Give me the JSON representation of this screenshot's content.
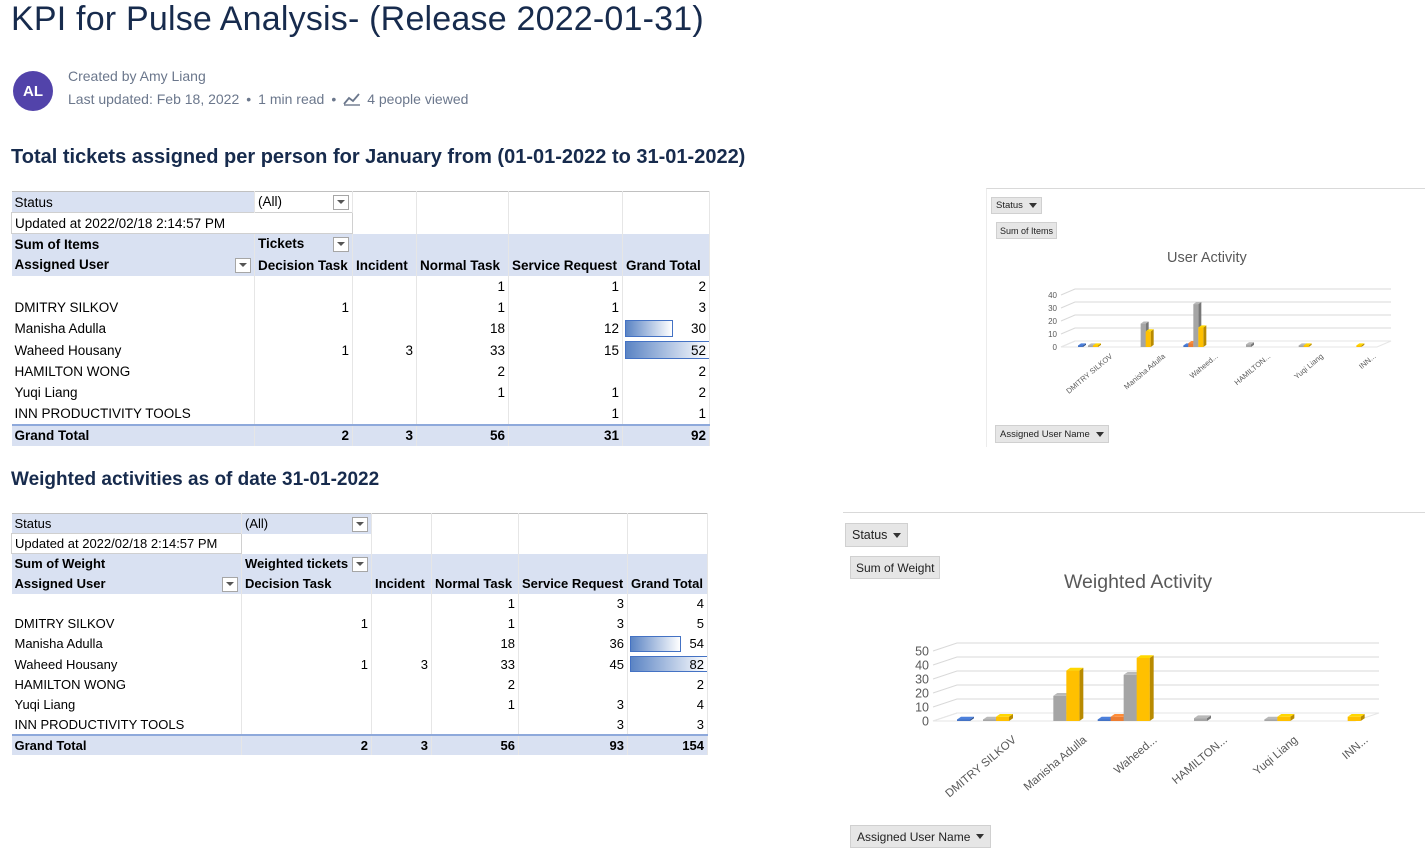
{
  "page": {
    "title": "KPI for Pulse Analysis- (Release 2022-01-31)",
    "avatar_initials": "AL",
    "created_by": "Created by Amy Liang",
    "last_updated": "Last updated: Feb 18, 2022",
    "read_time": "1 min read",
    "viewed": "4 people viewed",
    "avatar_color": "#5243aa"
  },
  "section1": {
    "heading": "Total tickets assigned per person for January from (01-01-2022 to 31-01-2022)",
    "filter_label": "Status",
    "filter_value": "(All)",
    "updated": "Updated at 2022/02/18 2:14:57 PM",
    "sum_label": "Sum of Items",
    "col_field_label": "Tickets",
    "row_field_label": "Assigned User",
    "columns": [
      "Decision Task",
      "Incident",
      "Normal Task",
      "Service Request",
      "Grand Total"
    ],
    "rows": [
      {
        "name": "",
        "values": [
          "",
          "",
          "1",
          "1",
          "2"
        ]
      },
      {
        "name": "DMITRY SILKOV",
        "values": [
          "1",
          "",
          "1",
          "1",
          "3"
        ]
      },
      {
        "name": "Manisha Adulla",
        "values": [
          "",
          "",
          "18",
          "12",
          "30"
        ]
      },
      {
        "name": "Waheed Housany",
        "values": [
          "1",
          "3",
          "33",
          "15",
          "52"
        ]
      },
      {
        "name": "HAMILTON WONG",
        "values": [
          "",
          "",
          "2",
          "",
          "2"
        ]
      },
      {
        "name": "Yuqi Liang",
        "values": [
          "",
          "",
          "1",
          "1",
          "2"
        ]
      },
      {
        "name": "INN PRODUCTIVITY TOOLS",
        "values": [
          "",
          "",
          "",
          "1",
          "1"
        ]
      }
    ],
    "total": {
      "name": "Grand Total",
      "values": [
        "2",
        "3",
        "56",
        "31",
        "92"
      ]
    }
  },
  "section2": {
    "heading": "Weighted activities as of date 31-01-2022",
    "filter_label": "Status",
    "filter_value": "(All)",
    "updated": "Updated at 2022/02/18 2:14:57 PM",
    "sum_label": "Sum of Weight",
    "col_field_label": "Weighted tickets",
    "row_field_label": "Assigned User",
    "columns": [
      "Decision Task",
      "Incident",
      "Normal Task",
      "Service Request",
      "Grand Total"
    ],
    "rows": [
      {
        "name": "",
        "values": [
          "",
          "",
          "1",
          "3",
          "4"
        ]
      },
      {
        "name": "DMITRY SILKOV",
        "values": [
          "1",
          "",
          "1",
          "3",
          "5"
        ]
      },
      {
        "name": "Manisha Adulla",
        "values": [
          "",
          "",
          "18",
          "36",
          "54"
        ]
      },
      {
        "name": "Waheed Housany",
        "values": [
          "1",
          "3",
          "33",
          "45",
          "82"
        ]
      },
      {
        "name": "HAMILTON WONG",
        "values": [
          "",
          "",
          "2",
          "",
          "2"
        ]
      },
      {
        "name": "Yuqi Liang",
        "values": [
          "",
          "",
          "1",
          "3",
          "4"
        ]
      },
      {
        "name": "INN PRODUCTIVITY TOOLS",
        "values": [
          "",
          "",
          "",
          "3",
          "3"
        ]
      }
    ],
    "total": {
      "name": "Grand Total",
      "values": [
        "2",
        "3",
        "56",
        "93",
        "154"
      ]
    }
  },
  "chart_data": [
    {
      "type": "bar",
      "title": "User Activity",
      "filter_button": "Status",
      "values_button": "Sum of Items",
      "axis_button": "Assigned User Name",
      "categories": [
        "DMITRY SILKOV",
        "Manisha Adulla",
        "Waheed...",
        "HAMILTON...",
        "Yuqi Liang",
        "INN..."
      ],
      "series": [
        {
          "color": "#4472c4",
          "values": [
            1,
            0,
            1,
            0,
            0,
            0
          ]
        },
        {
          "color": "#ed7d31",
          "values": [
            0,
            0,
            3,
            0,
            0,
            0
          ]
        },
        {
          "color": "#a5a5a5",
          "values": [
            1,
            18,
            33,
            2,
            1,
            0
          ]
        },
        {
          "color": "#ffc000",
          "values": [
            1,
            12,
            15,
            0,
            1,
            1
          ]
        }
      ],
      "yticks": [
        0,
        10,
        20,
        30,
        40
      ],
      "ylim": [
        0,
        40
      ]
    },
    {
      "type": "bar",
      "title": "Weighted Activity",
      "filter_button": "Status",
      "values_button": "Sum of Weight",
      "axis_button": "Assigned User Name",
      "categories": [
        "DMITRY SILKOV",
        "Manisha Adulla",
        "Waheed...",
        "HAMILTON...",
        "Yuqi Liang",
        "INN..."
      ],
      "series": [
        {
          "color": "#4472c4",
          "values": [
            1,
            0,
            1,
            0,
            0,
            0
          ]
        },
        {
          "color": "#ed7d31",
          "values": [
            0,
            0,
            3,
            0,
            0,
            0
          ]
        },
        {
          "color": "#a5a5a5",
          "values": [
            1,
            18,
            33,
            2,
            1,
            0
          ]
        },
        {
          "color": "#ffc000",
          "values": [
            3,
            36,
            45,
            0,
            3,
            3
          ]
        }
      ],
      "yticks": [
        0,
        10,
        20,
        30,
        40,
        50
      ],
      "ylim": [
        0,
        50
      ]
    }
  ]
}
